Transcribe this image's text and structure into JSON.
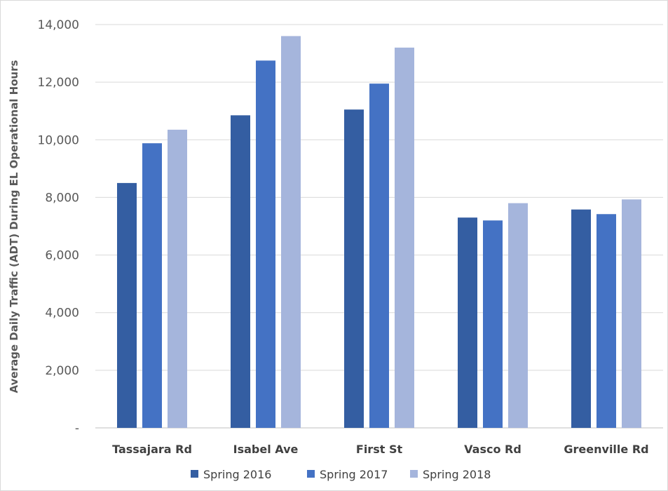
{
  "chart_data": {
    "type": "bar",
    "categories": [
      "Tassajara Rd",
      "Isabel Ave",
      "First St",
      "Vasco Rd",
      "Greenville Rd"
    ],
    "series": [
      {
        "name": "Spring 2016",
        "values": [
          8500,
          10850,
          11050,
          7300,
          7580
        ],
        "color": "#345ea2"
      },
      {
        "name": "Spring 2017",
        "values": [
          9880,
          12750,
          11950,
          7200,
          7420
        ],
        "color": "#4472c4"
      },
      {
        "name": "Spring 2018",
        "values": [
          10350,
          13600,
          13200,
          7800,
          7930
        ],
        "color": "#a5b5dc"
      }
    ],
    "ylabel": "Average Daily Traffic (ADT) During EL Operational Hours",
    "ylim": [
      0,
      14000
    ],
    "yticks": [
      0,
      2000,
      4000,
      6000,
      8000,
      10000,
      12000,
      14000
    ],
    "ytick_labels": [
      "-",
      "2,000",
      "4,000",
      "6,000",
      "8,000",
      "10,000",
      "12,000",
      "14,000"
    ],
    "grid": true,
    "legend_position": "bottom"
  }
}
